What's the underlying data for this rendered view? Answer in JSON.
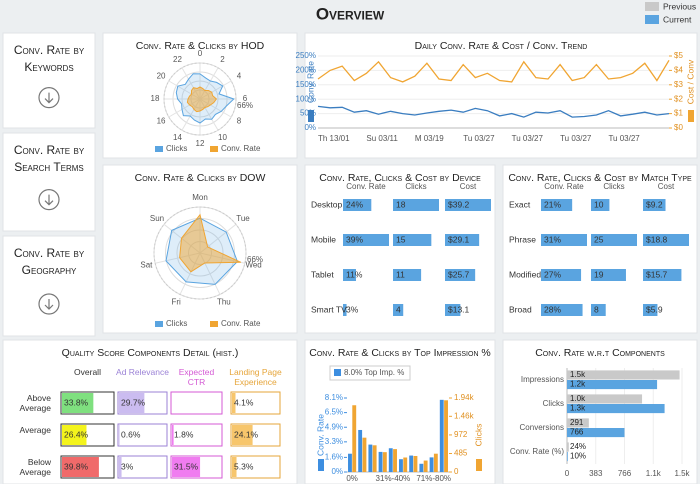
{
  "header": {
    "title": "Overview",
    "legend": [
      {
        "name": "Previous",
        "color": "#c9c9c9"
      },
      {
        "name": "Current",
        "color": "#5aa4e0"
      }
    ]
  },
  "nav": [
    "Conv. Rate by Keywords",
    "Conv. Rate by Search Terms",
    "Conv. Rate by Geography"
  ],
  "chart_data": [
    {
      "type": "radar",
      "title": "Conv. Rate & Clicks by HOD",
      "categories": [
        "0",
        null,
        "2",
        null,
        "4",
        null,
        "6",
        null,
        "8",
        null,
        "10",
        null,
        "12",
        null,
        "14",
        null,
        "16",
        null,
        "18",
        null,
        "20",
        null,
        "22",
        null
      ],
      "rlim": [
        0,
        66
      ],
      "rticks": [
        {
          "value": 66,
          "label": "66%"
        }
      ],
      "series": [
        {
          "name": "Clicks",
          "color": "#5aa4e0",
          "values": [
            46,
            40,
            38,
            43,
            48,
            36,
            62,
            50,
            45,
            40,
            43,
            38,
            44,
            40,
            36,
            43,
            38,
            35,
            41,
            45,
            47,
            38,
            42,
            48
          ]
        },
        {
          "name": "Conv. Rate",
          "color": "#f0a532",
          "values": [
            22,
            20,
            18,
            22,
            25,
            24,
            30,
            26,
            22,
            20,
            18,
            20,
            22,
            24,
            22,
            20,
            22,
            24,
            22,
            20,
            18,
            22,
            24,
            20
          ]
        }
      ]
    },
    {
      "type": "line",
      "title": "Daily Conv. Rate & Cost / Conv. Trend",
      "ylabel": "Conv. Rate",
      "y2label": "Cost / Conv",
      "grid": true,
      "categories": [
        "Th 13/01",
        null,
        null,
        null,
        "Su 03/11",
        null,
        null,
        null,
        "M 03/19",
        null,
        null,
        null,
        "Tu 03/27",
        null,
        null,
        null,
        "Tu 03/27",
        null,
        null,
        null,
        "Tu 03/27",
        null,
        null,
        null,
        "Tu 03/27",
        null,
        null,
        null,
        null,
        null
      ],
      "ylim": [
        0,
        250
      ],
      "yticks": [
        {
          "value": 0,
          "label": "0%"
        },
        {
          "value": 50,
          "label": "50%"
        },
        {
          "value": 100,
          "label": "100%"
        },
        {
          "value": 150,
          "label": "150%"
        },
        {
          "value": 200,
          "label": "200%"
        },
        {
          "value": 250,
          "label": "250%"
        }
      ],
      "y2lim": [
        0,
        5
      ],
      "y2ticks": [
        {
          "value": 0,
          "label": "$0"
        },
        {
          "value": 1,
          "label": "$1"
        },
        {
          "value": 2,
          "label": "$2"
        },
        {
          "value": 3,
          "label": "$3"
        },
        {
          "value": 4,
          "label": "$4"
        },
        {
          "value": 5,
          "label": "$5"
        }
      ],
      "series": [
        {
          "name": "Conv. Rate",
          "color": "#3a7dc0",
          "axis": "y",
          "values": [
            75,
            70,
            72,
            55,
            60,
            48,
            58,
            50,
            45,
            52,
            58,
            62,
            55,
            68,
            60,
            42,
            50,
            38,
            55,
            52,
            60,
            38,
            40,
            45,
            60,
            42,
            48,
            55,
            45,
            50
          ]
        },
        {
          "name": "Cost / Conv",
          "color": "#f0a532",
          "axis": "y2",
          "values": [
            3.4,
            4.0,
            4.3,
            3.3,
            3.8,
            4.6,
            3.5,
            3.2,
            3.6,
            4.5,
            3.4,
            3.3,
            4.4,
            3.5,
            3.8,
            3.3,
            3.2,
            4.6,
            3.5,
            3.4,
            4.4,
            3.3,
            3.5,
            4.4,
            3.4,
            3.5,
            3.8,
            4.5,
            3.3,
            4.7
          ]
        }
      ]
    },
    {
      "type": "radar",
      "title": "Conv. Rate & Clicks by DOW",
      "categories": [
        "Mon",
        "Tue",
        "Wed",
        "Thu",
        "Fri",
        "Sat",
        "Sun"
      ],
      "rlim": [
        0,
        66
      ],
      "rticks": [
        {
          "value": 66,
          "label": "66%"
        }
      ],
      "series": [
        {
          "name": "Clicks",
          "color": "#5aa4e0",
          "values": [
            50,
            48,
            55,
            50,
            46,
            50,
            52
          ]
        },
        {
          "name": "Conv. Rate",
          "color": "#f0a532",
          "values": [
            55,
            14,
            60,
            16,
            30,
            30,
            34
          ]
        }
      ]
    },
    {
      "type": "bartable",
      "title": "Conv. Rate, Clicks & Cost by Device",
      "color": "#5aa4e0",
      "categories": [
        "Desktop",
        "Mobile",
        "Tablet",
        "Smart TV"
      ],
      "series": [
        {
          "name": "Conv. Rate",
          "values": [
            24,
            39,
            11,
            3
          ],
          "value_labels": [
            "24%",
            "39%",
            "11%",
            "3%"
          ]
        },
        {
          "name": "Clicks",
          "values": [
            18,
            15,
            11,
            4
          ]
        },
        {
          "name": "Cost",
          "values": [
            39.2,
            29.1,
            25.7,
            13.1
          ],
          "value_labels": [
            "$39.2",
            "$29.1",
            "$25.7",
            "$13.1"
          ]
        }
      ]
    },
    {
      "type": "bartable",
      "title": "Conv. Rate, Clicks & Cost by Match Type",
      "color": "#5aa4e0",
      "categories": [
        "Exact",
        "Phrase",
        "Modified",
        "Broad"
      ],
      "series": [
        {
          "name": "Conv. Rate",
          "values": [
            21,
            31,
            27,
            28
          ],
          "value_labels": [
            "21%",
            "31%",
            "27%",
            "28%"
          ]
        },
        {
          "name": "Clicks",
          "values": [
            10,
            25,
            19,
            8
          ]
        },
        {
          "name": "Cost",
          "values": [
            9.2,
            18.8,
            15.7,
            5.9
          ],
          "value_labels": [
            "$9.2",
            "$18.8",
            "$15.7",
            "$5.9"
          ]
        }
      ]
    },
    {
      "type": "celltable",
      "title": "Quality Score Components Detail (hist.)",
      "categories": [
        "Above Average",
        "Average",
        "Below Average"
      ],
      "series": [
        {
          "name": "Overall",
          "color": "#333333",
          "colors": [
            "#7fe07f",
            "#f4f41c",
            "#f06a6a"
          ],
          "values": [
            33.8,
            26.4,
            39.8
          ],
          "value_labels": [
            "33.8%",
            "26.4%",
            "39.8%"
          ]
        },
        {
          "name": "Ad Relevance",
          "color": "#9b82d6",
          "fill": "#cbbcf0",
          "values": [
            29.7,
            0.6,
            3
          ],
          "value_labels": [
            "29.7%",
            "0.6%",
            "3%"
          ]
        },
        {
          "name": "Expected CTR",
          "color": "#d45ad4",
          "fill": "#f07cf0",
          "values": [
            null,
            1.8,
            31.5
          ],
          "value_labels": [
            null,
            "1.8%",
            "31.5%"
          ]
        },
        {
          "name": "Landing Page Experience",
          "color": "#e6a53a",
          "fill": "#f7c66c",
          "values": [
            4.1,
            24.1,
            5.3
          ],
          "value_labels": [
            "4.1%",
            "24.1%",
            "5.3%"
          ]
        }
      ]
    },
    {
      "type": "bar",
      "title": "Conv. Rate & Clicks by Top Impression %",
      "legend": "8.0% Top Imp. %",
      "ylabel": "Conv. Rate",
      "y2label": "Clicks",
      "categories": [
        "0%",
        null,
        null,
        null,
        "31%-40%",
        null,
        null,
        null,
        "71%-80%",
        null
      ],
      "ylim": [
        0,
        8.1
      ],
      "yticks": [
        {
          "value": 0,
          "label": "0%"
        },
        {
          "value": 1.6,
          "label": "1.6%"
        },
        {
          "value": 3.3,
          "label": "3.3%"
        },
        {
          "value": 4.9,
          "label": "4.9%"
        },
        {
          "value": 6.5,
          "label": "6.5%"
        },
        {
          "value": 8.1,
          "label": "8.1%"
        }
      ],
      "y2lim": [
        0,
        1940
      ],
      "y2ticks": [
        0,
        485,
        972,
        {
          "value": 1460,
          "label": "1.46k"
        },
        {
          "value": 1940,
          "label": "1.94k"
        }
      ],
      "series": [
        {
          "name": "Conv. Rate",
          "color": "#3d8ee0",
          "axis": "y",
          "values": [
            2.0,
            4.6,
            3.0,
            2.2,
            2.6,
            1.4,
            1.8,
            0.9,
            1.6,
            7.9
          ]
        },
        {
          "name": "Clicks",
          "color": "#f0a532",
          "axis": "y2",
          "values": [
            1750,
            900,
            700,
            520,
            600,
            380,
            420,
            300,
            480,
            1880
          ]
        }
      ]
    },
    {
      "type": "hbar",
      "title": "Conv. Rate w.r.t Components",
      "categories": [
        "Impressions",
        "Clicks",
        "Conversions",
        "Conv. Rate (%)"
      ],
      "xlim": [
        0,
        1532
      ],
      "xticks": [
        0,
        383,
        766,
        {
          "value": 1149,
          "label": "1.1k"
        },
        {
          "value": 1532,
          "label": "1.5k"
        }
      ],
      "series": [
        {
          "name": "Previous",
          "color": "#c9c9c9",
          "values": [
            1500,
            1000,
            291,
            24
          ],
          "value_labels": [
            "1.5k",
            "1.0k",
            "291",
            "24%"
          ]
        },
        {
          "name": "Current",
          "color": "#5aa4e0",
          "values": [
            1200,
            1300,
            766,
            10
          ],
          "value_labels": [
            "1.2k",
            "1.3k",
            "766",
            "10%"
          ]
        }
      ]
    }
  ]
}
